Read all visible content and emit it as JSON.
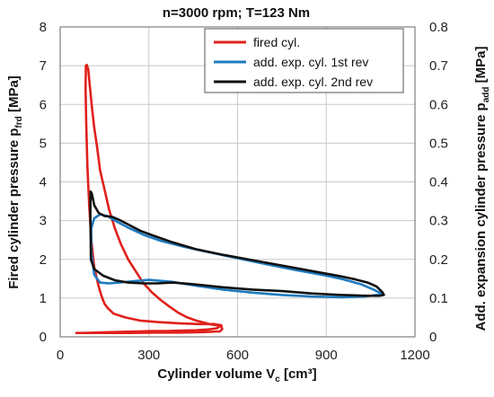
{
  "chart_data": {
    "type": "line",
    "title": "n=3000 rpm; T=123 Nm",
    "xlabel": {
      "main": "Cylinder volume V",
      "sub": "c",
      "unit": " [cm³]"
    },
    "ylabel_left": {
      "main": "Fired cylinder pressure p",
      "sub": "frd",
      "unit": " [MPa]"
    },
    "ylabel_right": {
      "main": "Add. expansion cylinder pressure p",
      "sub": "add",
      "unit": " [MPa]"
    },
    "xlim": [
      0,
      1200
    ],
    "ylim_left": [
      0,
      8
    ],
    "ylim_right": [
      0,
      0.8
    ],
    "xticks": [
      "0",
      "300",
      "600",
      "900",
      "1200"
    ],
    "yticks_left": [
      "0",
      "1",
      "2",
      "3",
      "4",
      "5",
      "6",
      "7",
      "8"
    ],
    "yticks_right": [
      "0",
      "0.1",
      "0.2",
      "0.3",
      "0.4",
      "0.5",
      "0.6",
      "0.7",
      "0.8"
    ],
    "grid": true,
    "legend_position": "top-right",
    "series": [
      {
        "name": "fired cyl.",
        "color": "#e0201b",
        "axis": "left",
        "x": [
          55,
          80,
          120,
          165,
          210,
          260,
          310,
          360,
          410,
          460,
          500,
          530,
          545,
          520,
          470,
          400,
          330,
          270,
          220,
          180,
          160,
          150,
          140,
          130,
          115,
          105,
          98,
          92,
          88,
          86,
          87,
          90,
          95,
          100,
          108,
          115,
          125,
          135,
          150,
          165,
          185,
          205,
          230,
          255,
          280,
          310,
          340,
          370,
          400,
          430,
          460,
          490,
          510,
          530,
          545,
          548,
          540,
          480,
          400,
          320,
          240,
          160,
          100,
          65,
          55
        ],
        "y": [
          0.1,
          0.1,
          0.11,
          0.12,
          0.13,
          0.14,
          0.15,
          0.15,
          0.16,
          0.17,
          0.19,
          0.22,
          0.3,
          0.33,
          0.33,
          0.35,
          0.38,
          0.42,
          0.5,
          0.6,
          0.75,
          0.85,
          1.05,
          1.3,
          1.8,
          2.5,
          3.4,
          4.4,
          5.5,
          6.4,
          7.0,
          7.02,
          6.9,
          6.5,
          5.9,
          5.4,
          4.9,
          4.3,
          3.8,
          3.3,
          2.8,
          2.4,
          2.0,
          1.7,
          1.4,
          1.15,
          0.95,
          0.78,
          0.62,
          0.5,
          0.42,
          0.36,
          0.32,
          0.3,
          0.28,
          0.2,
          0.14,
          0.12,
          0.11,
          0.11,
          0.1,
          0.1,
          0.1,
          0.1,
          0.1
        ]
      },
      {
        "name": "add. exp. cyl. 1st rev",
        "color": "#1f7bbf",
        "axis": "right",
        "x": [
          1090,
          1085,
          1060,
          1020,
          960,
          900,
          800,
          700,
          600,
          500,
          420,
          340,
          280,
          230,
          190,
          160,
          135,
          115,
          105,
          105,
          115,
          135,
          165,
          200,
          240,
          300,
          380,
          460,
          550,
          650,
          750,
          850,
          950,
          1030,
          1070,
          1090
        ],
        "y": [
          0.108,
          0.112,
          0.122,
          0.135,
          0.148,
          0.158,
          0.172,
          0.187,
          0.203,
          0.219,
          0.232,
          0.248,
          0.264,
          0.282,
          0.298,
          0.312,
          0.316,
          0.306,
          0.28,
          0.22,
          0.16,
          0.14,
          0.138,
          0.14,
          0.143,
          0.147,
          0.142,
          0.132,
          0.122,
          0.114,
          0.108,
          0.104,
          0.102,
          0.104,
          0.108,
          0.108
        ]
      },
      {
        "name": "add. exp. cyl. 2nd rev",
        "color": "#111111",
        "axis": "right",
        "x": [
          1095,
          1090,
          1070,
          1040,
          1000,
          950,
          850,
          750,
          650,
          550,
          460,
          380,
          320,
          270,
          230,
          200,
          175,
          150,
          130,
          115,
          107,
          103,
          102,
          104,
          115,
          145,
          185,
          230,
          280,
          330,
          380,
          450,
          550,
          650,
          750,
          850,
          950,
          1040,
          1080,
          1095
        ],
        "y": [
          0.108,
          0.115,
          0.13,
          0.14,
          0.148,
          0.156,
          0.17,
          0.184,
          0.198,
          0.212,
          0.226,
          0.244,
          0.26,
          0.274,
          0.29,
          0.302,
          0.31,
          0.312,
          0.32,
          0.34,
          0.37,
          0.375,
          0.33,
          0.2,
          0.175,
          0.158,
          0.146,
          0.14,
          0.138,
          0.138,
          0.14,
          0.136,
          0.128,
          0.122,
          0.118,
          0.112,
          0.108,
          0.106,
          0.106,
          0.108
        ]
      }
    ]
  }
}
